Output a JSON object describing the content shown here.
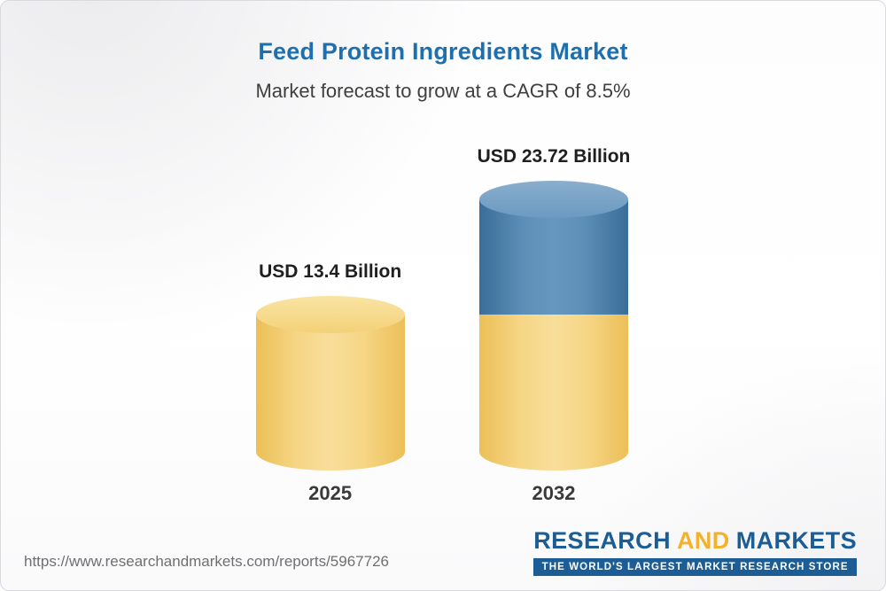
{
  "chart_data": {
    "type": "bar",
    "title": "Feed Protein Ingredients Market",
    "subtitle": "Market forecast to grow at a CAGR of 8.5%",
    "cagr_percent": 8.5,
    "unit": "USD Billion",
    "categories": [
      "2025",
      "2032"
    ],
    "values": [
      13.4,
      23.72
    ],
    "bars": [
      {
        "year": "2025",
        "value": 13.4,
        "label": "USD 13.4 Billion",
        "segments": [
          {
            "name": "base",
            "value": 13.4,
            "color": "#f5d47f"
          }
        ]
      },
      {
        "year": "2032",
        "value": 23.72,
        "label": "USD 23.72 Billion",
        "segments": [
          {
            "name": "growth",
            "value": 10.32,
            "color": "#4a7ba3"
          },
          {
            "name": "base",
            "value": 13.4,
            "color": "#f5d47f"
          }
        ]
      }
    ],
    "ylim": [
      0,
      25
    ],
    "grid": false,
    "legend": false,
    "axes_visible": false
  },
  "colors": {
    "title_blue": "#1e6fae",
    "subtitle_gray": "#3f3f3f",
    "bar_yellow": "#f5d47f",
    "bar_blue": "#4a7ba3",
    "logo_blue": "#1b5d94",
    "logo_yellow": "#f2b12e",
    "url_gray": "#6f6f6f"
  },
  "footer": {
    "url": "https://www.researchandmarkets.com/reports/5967726",
    "logo": {
      "word1": "RESEARCH",
      "word2": "AND",
      "word3": "MARKETS",
      "tagline": "THE WORLD'S LARGEST MARKET RESEARCH STORE"
    }
  }
}
